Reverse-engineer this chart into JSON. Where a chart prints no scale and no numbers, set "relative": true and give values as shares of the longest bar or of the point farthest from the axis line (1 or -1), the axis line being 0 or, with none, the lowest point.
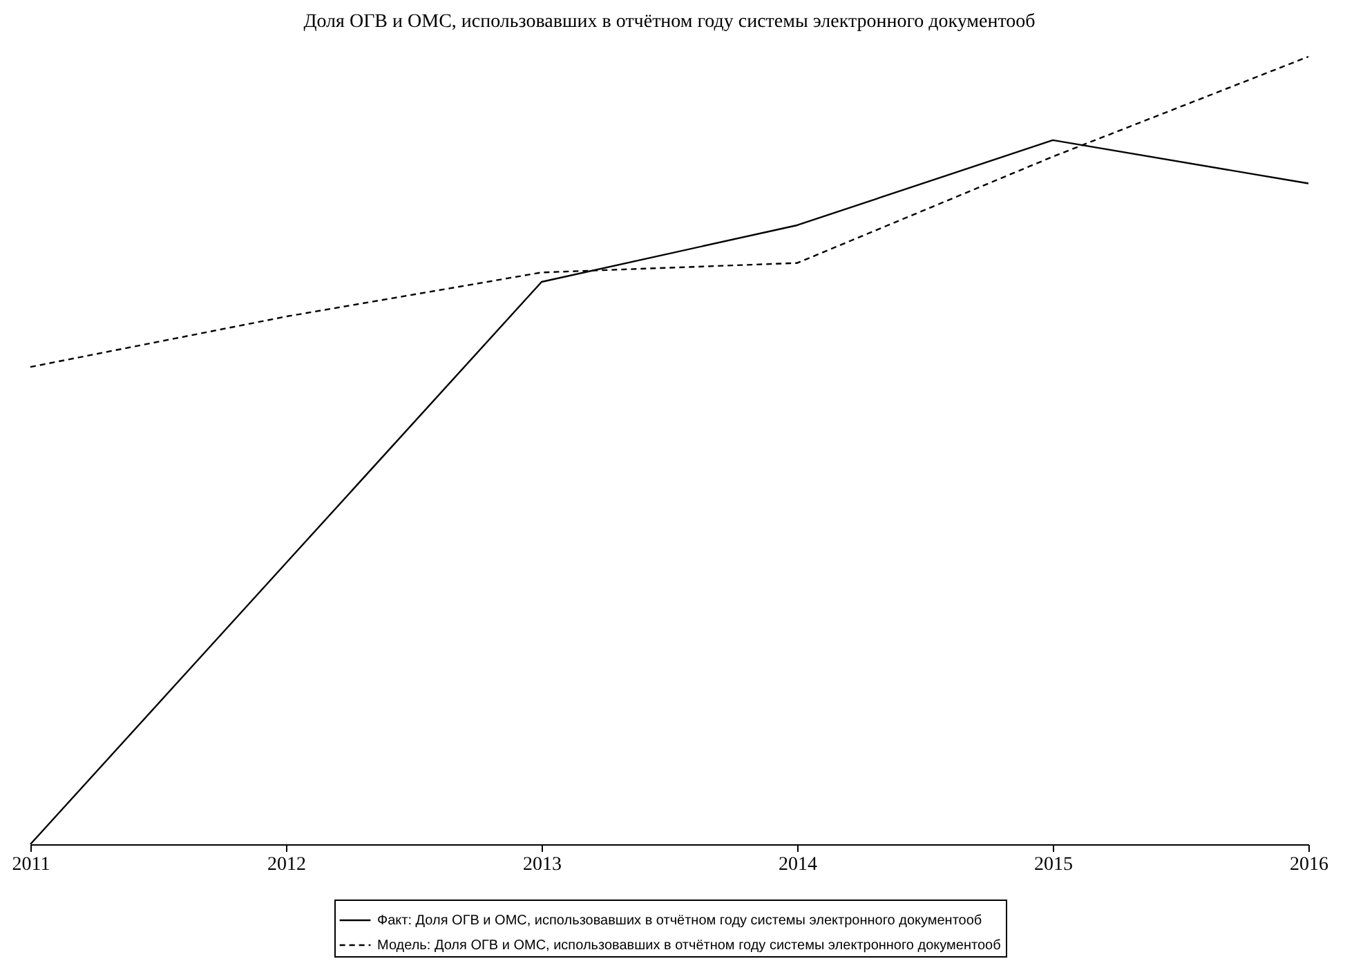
{
  "chart_data": {
    "type": "line",
    "title": "Доля ОГВ и ОМС, использовавших в отчётном году системы электронного документооб",
    "categories": [
      "2011",
      "2012",
      "2013",
      "2014",
      "2015",
      "2016"
    ],
    "relative": true,
    "legend": "bottom",
    "grid": false,
    "marker": "none",
    "series": [
      {
        "name": "Факт:  Доля ОГВ и ОМС, использовавших в отчётном году системы электронного документооб",
        "color": "#000000",
        "line_style": "solid",
        "values": [
          0,
          0.357,
          0.714,
          0.786,
          0.894,
          0.839
        ]
      },
      {
        "name": "Модель: Доля ОГВ и ОМС, использовавших в отчётном году системы электронного документооб",
        "color": "#000000",
        "line_style": "dashed",
        "values": [
          0.606,
          0.67,
          0.726,
          0.738,
          0.873,
          1
        ]
      }
    ]
  }
}
